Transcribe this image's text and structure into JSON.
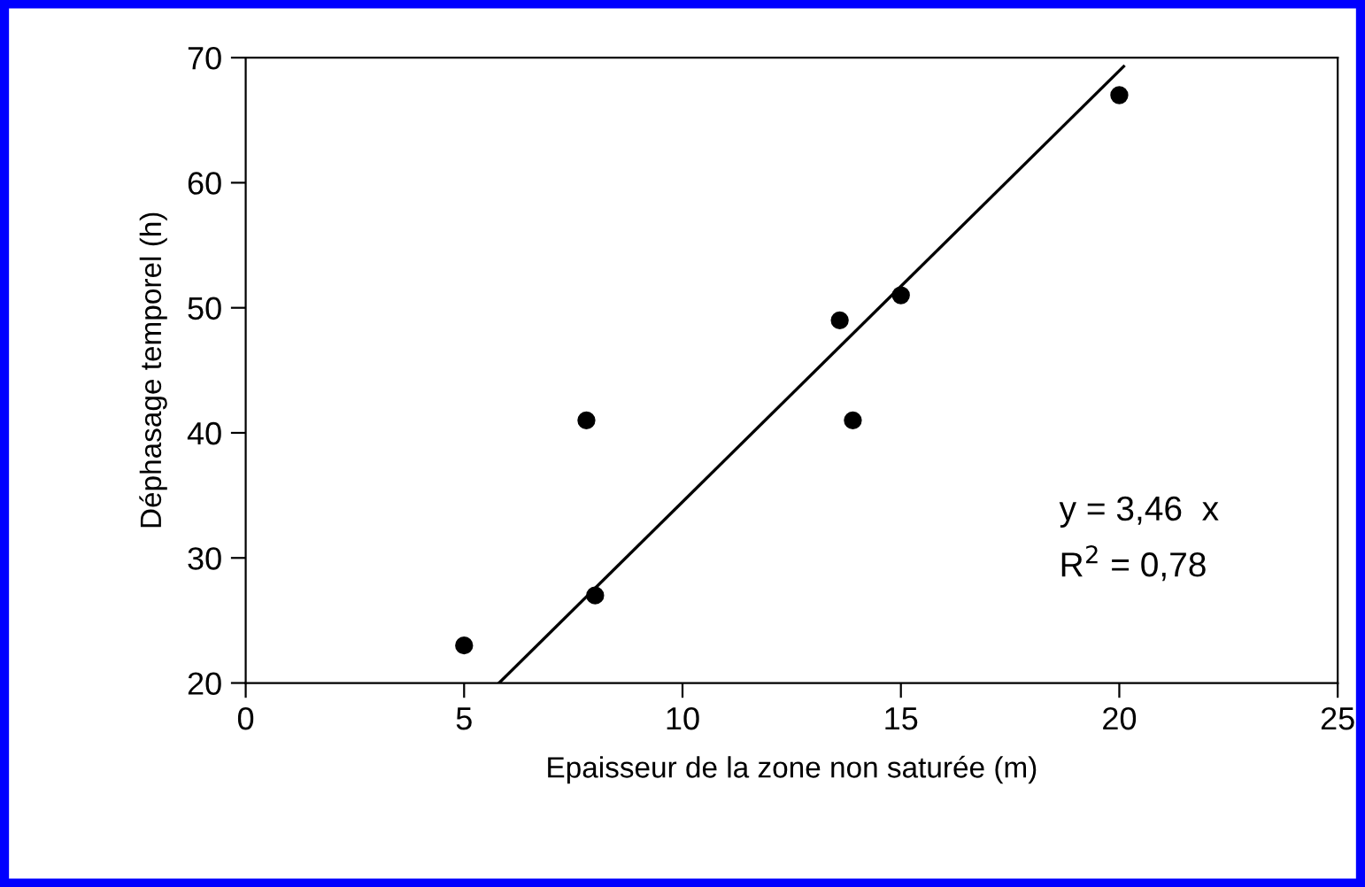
{
  "chart_data": {
    "type": "scatter",
    "xlabel": "Epaisseur de la zone non saturée (m)",
    "ylabel": "Déphasage temporel (h)",
    "xlim": [
      0,
      25
    ],
    "xticks": [
      0,
      5,
      10,
      15,
      20,
      25
    ],
    "ylim": [
      20,
      70
    ],
    "yticks": [
      20,
      30,
      40,
      50,
      60,
      70
    ],
    "grid": false,
    "legend": false,
    "marker": "circle",
    "series": [
      {
        "color": "#000000",
        "x": [
          5.0,
          7.8,
          8.0,
          13.6,
          13.9,
          15.0,
          20.0
        ],
        "values": [
          23,
          41,
          27,
          49,
          41,
          51,
          67
        ]
      },
      {
        "type": "line",
        "color": "#000000",
        "line_style": "solid",
        "marker": "none",
        "x": [
          5.8,
          20.1
        ],
        "values": [
          20,
          69.3
        ]
      }
    ],
    "annotations": [
      "y = 3,46  x",
      "R$^{2}$ = 0,78"
    ]
  }
}
